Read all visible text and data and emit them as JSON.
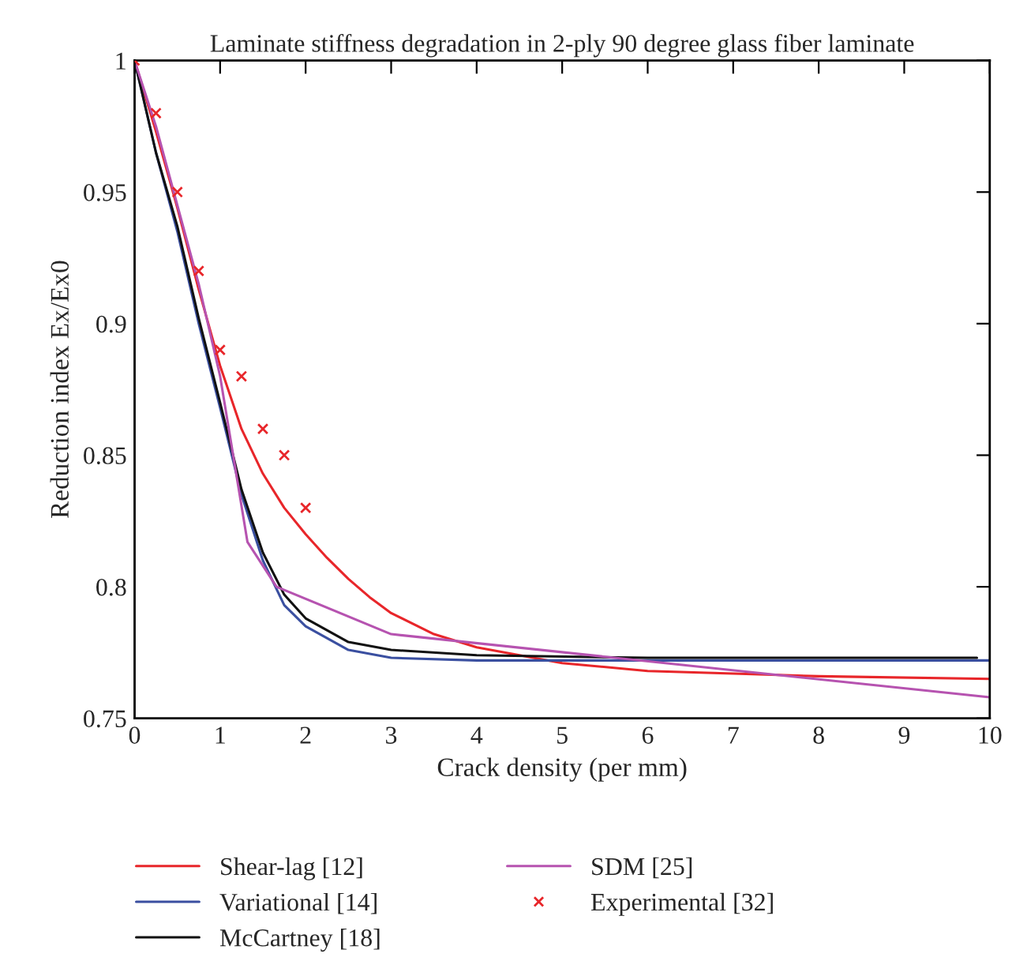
{
  "chart_data": {
    "type": "line",
    "title": "Laminate stiffness degradation in 2-ply 90 degree glass fiber laminate",
    "xlabel": "Crack density (per mm)",
    "ylabel": "Reduction index Ex/Ex0",
    "xlim": [
      0,
      10
    ],
    "ylim": [
      0.75,
      1
    ],
    "xticks": [
      0,
      1,
      2,
      3,
      4,
      5,
      6,
      7,
      8,
      9,
      10
    ],
    "yticks": [
      0.75,
      0.8,
      0.85,
      0.9,
      0.95,
      1
    ],
    "grid": false,
    "legend": "bottom",
    "line_style": "solid",
    "series": [
      {
        "name": "Shear-lag [12]",
        "color": "#e8262a",
        "x": [
          0,
          0.25,
          0.5,
          0.75,
          1,
          1.25,
          1.5,
          1.75,
          2,
          2.25,
          2.5,
          2.75,
          3,
          3.5,
          4,
          4.5,
          5,
          6,
          7,
          8,
          10
        ],
        "values": [
          1,
          0.973,
          0.944,
          0.913,
          0.884,
          0.86,
          0.843,
          0.83,
          0.82,
          0.811,
          0.803,
          0.796,
          0.79,
          0.782,
          0.777,
          0.774,
          0.771,
          0.768,
          0.767,
          0.766,
          0.765
        ]
      },
      {
        "name": "Variational [14]",
        "color": "#3a4fa0",
        "x": [
          0,
          0.25,
          0.5,
          0.75,
          1,
          1.25,
          1.5,
          1.75,
          2,
          2.5,
          3,
          4,
          6,
          10
        ],
        "values": [
          1,
          0.965,
          0.935,
          0.9,
          0.868,
          0.835,
          0.81,
          0.793,
          0.785,
          0.776,
          0.773,
          0.772,
          0.772,
          0.772
        ]
      },
      {
        "name": "McCartney [18]",
        "color": "#111111",
        "x": [
          0,
          0.25,
          0.5,
          0.75,
          1,
          1.25,
          1.5,
          1.75,
          2,
          2.5,
          3,
          4,
          6,
          9.85
        ],
        "values": [
          1,
          0.965,
          0.937,
          0.902,
          0.87,
          0.837,
          0.813,
          0.797,
          0.788,
          0.779,
          0.776,
          0.774,
          0.773,
          0.773
        ]
      },
      {
        "name": "SDM [25]",
        "color": "#b653b0",
        "x": [
          0,
          0.25,
          0.5,
          0.75,
          1,
          1.32,
          1.66,
          3,
          10
        ],
        "values": [
          1,
          0.975,
          0.945,
          0.915,
          0.88,
          0.817,
          0.8,
          0.782,
          0.758
        ]
      },
      {
        "name": "Experimental [32]",
        "type": "scatter",
        "marker": "cross",
        "color": "#e8262a",
        "x": [
          0,
          0.25,
          0.5,
          0.75,
          1,
          1.25,
          1.5,
          1.75,
          2
        ],
        "values": [
          1,
          0.98,
          0.95,
          0.92,
          0.89,
          0.88,
          0.86,
          0.85,
          0.83
        ]
      }
    ]
  }
}
